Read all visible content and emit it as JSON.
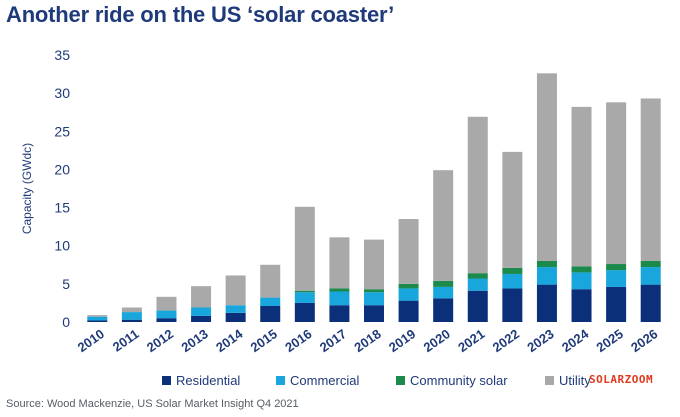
{
  "chart_data": {
    "type": "bar",
    "stacked": true,
    "title": "Another ride on the US ‘solar coaster’",
    "ylabel": "Capacity (GWdc)",
    "xlabel": "",
    "ylim": [
      0,
      35
    ],
    "yticks": [
      0,
      5,
      10,
      15,
      20,
      25,
      30,
      35
    ],
    "grid": false,
    "legend_position": "bottom",
    "categories": [
      "2010",
      "2011",
      "2012",
      "2013",
      "2014",
      "2015",
      "2016",
      "2017",
      "2018",
      "2019",
      "2020",
      "2021",
      "2022",
      "2023",
      "2024",
      "2025",
      "2026"
    ],
    "series": [
      {
        "name": "Residential",
        "color": "#0b2f78",
        "values": [
          0.2,
          0.3,
          0.5,
          0.8,
          1.2,
          2.1,
          2.5,
          2.2,
          2.2,
          2.8,
          3.1,
          4.1,
          4.4,
          4.9,
          4.3,
          4.6,
          4.9
        ]
      },
      {
        "name": "Commercial",
        "color": "#18a6dc",
        "values": [
          0.5,
          1.0,
          1.0,
          1.1,
          1.0,
          1.1,
          1.4,
          1.8,
          1.7,
          1.6,
          1.5,
          1.6,
          1.9,
          2.3,
          2.2,
          2.2,
          2.3
        ]
      },
      {
        "name": "Community solar",
        "color": "#1b8a4a",
        "values": [
          0.0,
          0.0,
          0.0,
          0.0,
          0.0,
          0.0,
          0.2,
          0.4,
          0.4,
          0.6,
          0.8,
          0.7,
          0.8,
          0.8,
          0.8,
          0.8,
          0.8
        ]
      },
      {
        "name": "Utility",
        "color": "#a9a9a9",
        "values": [
          0.2,
          0.6,
          1.8,
          2.8,
          3.9,
          4.3,
          11.0,
          6.7,
          6.5,
          8.5,
          14.5,
          20.5,
          15.2,
          24.6,
          20.9,
          21.2,
          21.3
        ]
      }
    ]
  },
  "source": "Source: Wood Mackenzie, US Solar Market Insight Q4 2021",
  "watermark": "SOLARZOOM"
}
